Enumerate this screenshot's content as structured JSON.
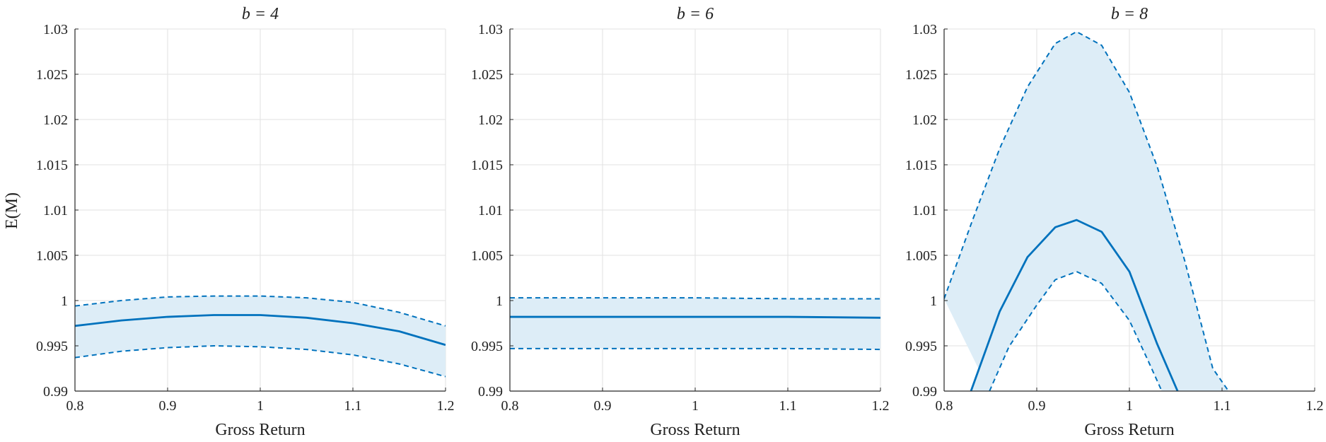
{
  "figure": {
    "ylabel": "E(M)",
    "colors": {
      "line": "#0072BD",
      "band": "#DDEDF7",
      "grid": "#E2E2E2",
      "axis": "#262626"
    }
  },
  "chart_data": [
    {
      "type": "line",
      "title": "b = 4",
      "xlabel": "Gross Return",
      "ylabel": "E(M)",
      "xlim": [
        0.8,
        1.2
      ],
      "ylim": [
        0.99,
        1.03
      ],
      "grid": true,
      "xticks": [
        "0.8",
        "0.9",
        "1",
        "1.1",
        "1.2"
      ],
      "yticks": [
        "0.99",
        "0.995",
        "1",
        "1.005",
        "1.01",
        "1.015",
        "1.02",
        "1.025",
        "1.03"
      ],
      "x": [
        0.8,
        0.85,
        0.9,
        0.95,
        1.0,
        1.05,
        1.1,
        1.15,
        1.2
      ],
      "series": [
        {
          "values": [
            0.9994,
            1.0,
            1.0004,
            1.0005,
            1.0005,
            1.0003,
            0.9998,
            0.9987,
            0.9972
          ],
          "style": "dashed"
        },
        {
          "values": [
            0.9972,
            0.9978,
            0.9982,
            0.9984,
            0.9984,
            0.9981,
            0.9975,
            0.9966,
            0.9951
          ],
          "style": "solid"
        },
        {
          "values": [
            0.9937,
            0.9944,
            0.9948,
            0.995,
            0.9949,
            0.9946,
            0.994,
            0.993,
            0.9916
          ],
          "style": "dashed"
        }
      ],
      "band": true
    },
    {
      "type": "line",
      "title": "b = 6",
      "xlabel": "Gross Return",
      "xlim": [
        0.8,
        1.2
      ],
      "ylim": [
        0.99,
        1.03
      ],
      "grid": true,
      "xticks": [
        "0.8",
        "0.9",
        "1",
        "1.1",
        "1.2"
      ],
      "yticks": [
        "0.99",
        "0.995",
        "1",
        "1.005",
        "1.01",
        "1.015",
        "1.02",
        "1.025",
        "1.03"
      ],
      "x": [
        0.8,
        0.9,
        1.0,
        1.1,
        1.2
      ],
      "series": [
        {
          "values": [
            1.0003,
            1.0003,
            1.0003,
            1.0002,
            1.0002
          ],
          "style": "dashed"
        },
        {
          "values": [
            0.9982,
            0.9982,
            0.9982,
            0.9982,
            0.9981
          ],
          "style": "solid"
        },
        {
          "values": [
            0.9947,
            0.9947,
            0.9947,
            0.9947,
            0.9946
          ],
          "style": "dashed"
        }
      ],
      "band": true
    },
    {
      "type": "line",
      "title": "b = 8",
      "xlabel": "Gross Return",
      "xlim": [
        0.8,
        1.2
      ],
      "ylim": [
        0.99,
        1.03
      ],
      "grid": true,
      "xticks": [
        "0.8",
        "0.9",
        "1",
        "1.1",
        "1.2"
      ],
      "yticks": [
        "0.99",
        "0.995",
        "1",
        "1.005",
        "1.01",
        "1.015",
        "1.02",
        "1.025",
        "1.03"
      ],
      "x": [
        0.8,
        0.83,
        0.86,
        0.89,
        0.92,
        0.943,
        0.97,
        1.0,
        1.03,
        1.06,
        1.09,
        1.107
      ],
      "series": [
        {
          "values": [
            1.0002,
            1.0087,
            1.0168,
            1.0236,
            1.0284,
            1.0297,
            1.0282,
            1.023,
            1.0148,
            1.0043,
            0.9925,
            0.99
          ],
          "style": "dashed"
        },
        {
          "x": [
            0.829,
            0.86,
            0.89,
            0.92,
            0.943,
            0.97,
            1.0,
            1.03,
            1.052
          ],
          "values": [
            0.99,
            0.9988,
            1.0048,
            1.0081,
            1.0089,
            1.0076,
            1.0032,
            0.9952,
            0.99
          ],
          "style": "solid"
        },
        {
          "x": [
            0.849,
            0.87,
            0.9,
            0.92,
            0.943,
            0.97,
            1.0,
            1.02,
            1.035
          ],
          "values": [
            0.99,
            0.9949,
            0.9995,
            1.0023,
            1.0032,
            1.0019,
            0.9978,
            0.9934,
            0.99
          ],
          "style": "dashed"
        }
      ],
      "band": true
    }
  ]
}
